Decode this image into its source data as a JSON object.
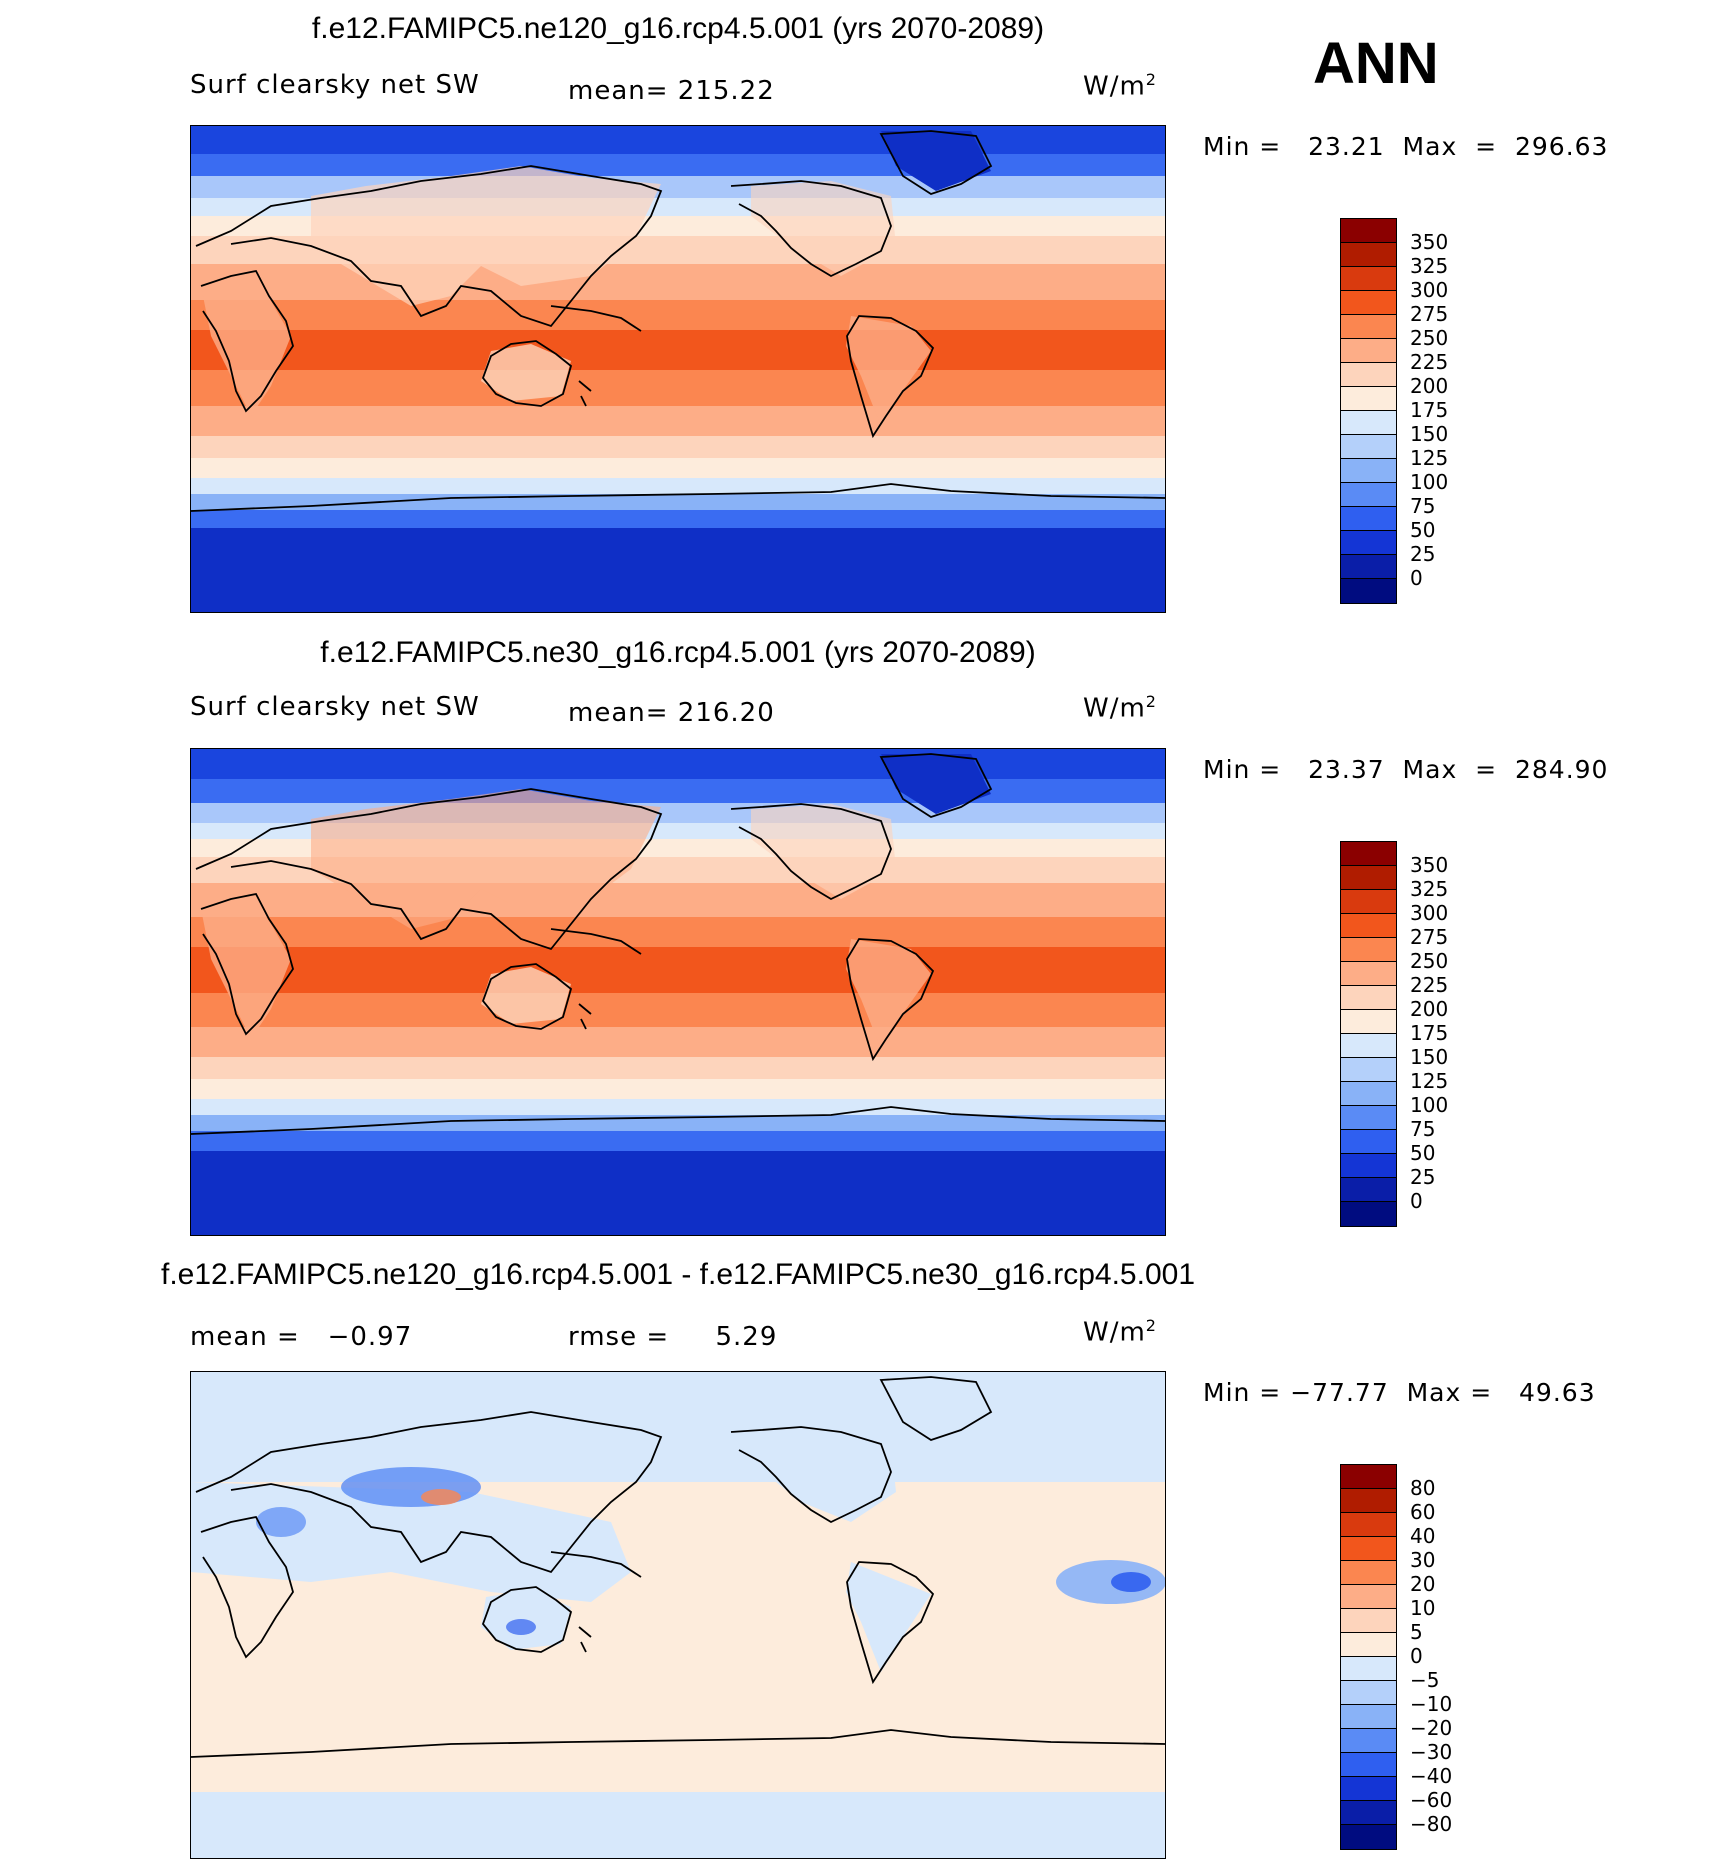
{
  "season": "ANN",
  "units_base": "W/m",
  "units_exp": "2",
  "panels": [
    {
      "title": "f.e12.FAMIPC5.ne120_g16.rcp4.5.001 (yrs 2070-2089)",
      "variable": "Surf clearsky net SW",
      "stat_text": "mean= 215.22",
      "minmax": "Min =   23.21  Max  =  296.63",
      "colorbar_labels": [
        "350",
        "325",
        "300",
        "275",
        "250",
        "225",
        "200",
        "175",
        "150",
        "125",
        "100",
        "75",
        "50",
        "25",
        "0"
      ]
    },
    {
      "title": "f.e12.FAMIPC5.ne30_g16.rcp4.5.001 (yrs 2070-2089)",
      "variable": "Surf clearsky net SW",
      "stat_text": "mean= 216.20",
      "minmax": "Min =   23.37  Max  =  284.90",
      "colorbar_labels": [
        "350",
        "325",
        "300",
        "275",
        "250",
        "225",
        "200",
        "175",
        "150",
        "125",
        "100",
        "75",
        "50",
        "25",
        "0"
      ]
    },
    {
      "title": "f.e12.FAMIPC5.ne120_g16.rcp4.5.001 - f.e12.FAMIPC5.ne30_g16.rcp4.5.001",
      "mean_text": "mean =   −0.97",
      "rmse_text": "rmse =     5.29",
      "minmax": "Min = −77.77  Max =   49.63",
      "colorbar_labels": [
        "80",
        "60",
        "40",
        "30",
        "20",
        "10",
        "5",
        "0",
        "−5",
        "−10",
        "−20",
        "−30",
        "−40",
        "−60",
        "−80"
      ]
    }
  ],
  "colorbar_colors": [
    "#8b0000",
    "#b01c00",
    "#d93a0e",
    "#f2561c",
    "#fb8650",
    "#fdad87",
    "#fdd4bc",
    "#fdecdc",
    "#d7e8fb",
    "#b4d0fa",
    "#89b2f7",
    "#5a8bf5",
    "#2f5ff0",
    "#1435d5",
    "#0a1ea8",
    "#000c80"
  ]
}
